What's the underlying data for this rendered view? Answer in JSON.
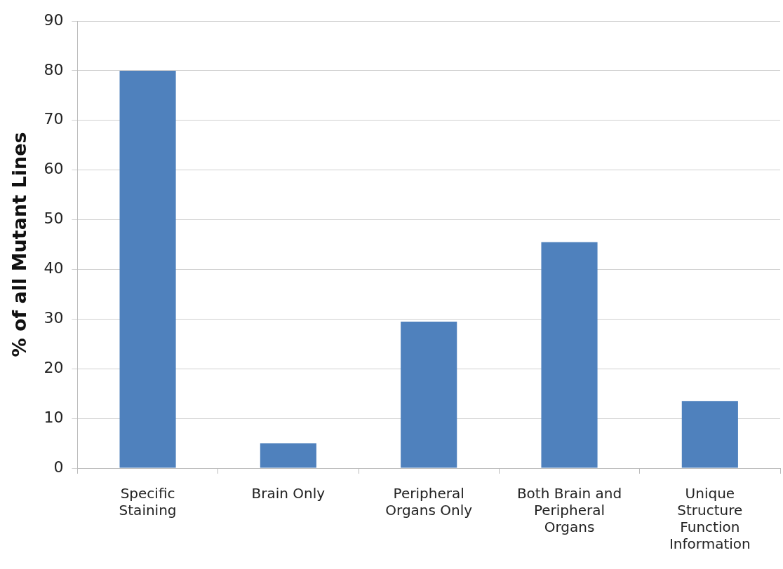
{
  "chart_data": {
    "type": "bar",
    "ylabel": "% of all Mutant Lines",
    "categories": [
      "Specific Staining",
      "Brain Only",
      "Peripheral Organs Only",
      "Both Brain and Peripheral Organs",
      "Unique Structure Function Information"
    ],
    "values": [
      80,
      5,
      29.5,
      45.5,
      13.5
    ],
    "color": "#4f81bd",
    "ylim": [
      0,
      90
    ],
    "yticks": [
      0,
      10,
      20,
      30,
      40,
      50,
      60,
      70,
      80,
      90
    ],
    "grid": "y",
    "legend": false
  }
}
